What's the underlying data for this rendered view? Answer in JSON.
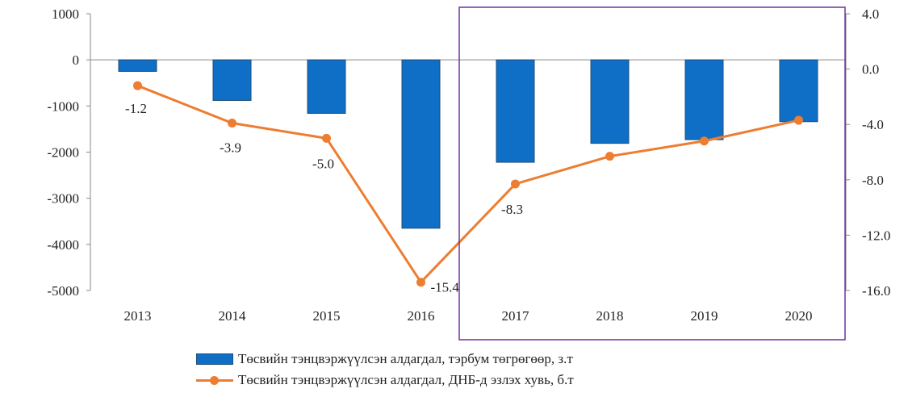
{
  "chart_data": {
    "type": "bar+line",
    "categories": [
      "2013",
      "2014",
      "2015",
      "2016",
      "2017",
      "2018",
      "2019",
      "2020"
    ],
    "series": [
      {
        "name": "Төсвийн тэнцвэржүүлсэн алдагдал,  тэрбум төгрөгөөр, з.т",
        "type": "bar",
        "axis": "left",
        "color": "#0f6fc6",
        "values": [
          -250,
          -880,
          -1160,
          -3650,
          -2220,
          -1810,
          -1730,
          -1340
        ]
      },
      {
        "name": "Төсвийн тэнцвэржүүлсэн алдагдал,  ДНБ-д  эзлэх  хувь,  б.т",
        "type": "line",
        "axis": "right",
        "color": "#ed7d31",
        "values": [
          -1.2,
          -3.9,
          -5.0,
          -15.4,
          -8.3,
          -6.3,
          -5.2,
          -3.7
        ],
        "data_labels": [
          "-1.2",
          "-3.9",
          "-5.0",
          "-15.4",
          "-8.3",
          "",
          "",
          ""
        ]
      }
    ],
    "left_axis": {
      "ylim": [
        -5000,
        1000
      ],
      "ticks": [
        1000,
        0,
        -1000,
        -2000,
        -3000,
        -4000,
        -5000
      ],
      "tick_labels": [
        "1000",
        "0",
        "-1000",
        "-2000",
        "-3000",
        "-4000",
        "-5000"
      ]
    },
    "right_axis": {
      "ylim": [
        -16,
        4
      ],
      "ticks": [
        4,
        0,
        -4,
        -8,
        -12,
        -16
      ],
      "tick_labels": [
        "4.0",
        "0.0",
        "-4.0",
        "-8.0",
        "-12.0",
        "-16.0"
      ]
    },
    "highlight_box": {
      "from_category": "2017",
      "to_category": "2020",
      "color": "#7030a0"
    },
    "grid": false,
    "legend_position": "bottom"
  }
}
